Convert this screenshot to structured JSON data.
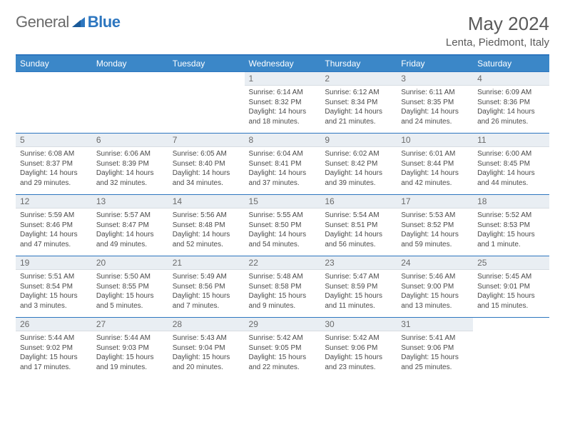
{
  "brand": {
    "word1": "General",
    "word2": "Blue"
  },
  "title": "May 2024",
  "location": "Lenta, Piedmont, Italy",
  "day_labels": [
    "Sunday",
    "Monday",
    "Tuesday",
    "Wednesday",
    "Thursday",
    "Friday",
    "Saturday"
  ],
  "colors": {
    "header_bg": "#3b87c8",
    "border": "#2d76bf",
    "daynum_bg": "#e9eef3",
    "text": "#4a4a4a"
  },
  "weeks": [
    [
      {
        "n": "",
        "lines": [
          "",
          "",
          "",
          ""
        ],
        "empty": true
      },
      {
        "n": "",
        "lines": [
          "",
          "",
          "",
          ""
        ],
        "empty": true
      },
      {
        "n": "",
        "lines": [
          "",
          "",
          "",
          ""
        ],
        "empty": true
      },
      {
        "n": "1",
        "lines": [
          "Sunrise: 6:14 AM",
          "Sunset: 8:32 PM",
          "Daylight: 14 hours",
          "and 18 minutes."
        ]
      },
      {
        "n": "2",
        "lines": [
          "Sunrise: 6:12 AM",
          "Sunset: 8:34 PM",
          "Daylight: 14 hours",
          "and 21 minutes."
        ]
      },
      {
        "n": "3",
        "lines": [
          "Sunrise: 6:11 AM",
          "Sunset: 8:35 PM",
          "Daylight: 14 hours",
          "and 24 minutes."
        ]
      },
      {
        "n": "4",
        "lines": [
          "Sunrise: 6:09 AM",
          "Sunset: 8:36 PM",
          "Daylight: 14 hours",
          "and 26 minutes."
        ]
      }
    ],
    [
      {
        "n": "5",
        "lines": [
          "Sunrise: 6:08 AM",
          "Sunset: 8:37 PM",
          "Daylight: 14 hours",
          "and 29 minutes."
        ]
      },
      {
        "n": "6",
        "lines": [
          "Sunrise: 6:06 AM",
          "Sunset: 8:39 PM",
          "Daylight: 14 hours",
          "and 32 minutes."
        ]
      },
      {
        "n": "7",
        "lines": [
          "Sunrise: 6:05 AM",
          "Sunset: 8:40 PM",
          "Daylight: 14 hours",
          "and 34 minutes."
        ]
      },
      {
        "n": "8",
        "lines": [
          "Sunrise: 6:04 AM",
          "Sunset: 8:41 PM",
          "Daylight: 14 hours",
          "and 37 minutes."
        ]
      },
      {
        "n": "9",
        "lines": [
          "Sunrise: 6:02 AM",
          "Sunset: 8:42 PM",
          "Daylight: 14 hours",
          "and 39 minutes."
        ]
      },
      {
        "n": "10",
        "lines": [
          "Sunrise: 6:01 AM",
          "Sunset: 8:44 PM",
          "Daylight: 14 hours",
          "and 42 minutes."
        ]
      },
      {
        "n": "11",
        "lines": [
          "Sunrise: 6:00 AM",
          "Sunset: 8:45 PM",
          "Daylight: 14 hours",
          "and 44 minutes."
        ]
      }
    ],
    [
      {
        "n": "12",
        "lines": [
          "Sunrise: 5:59 AM",
          "Sunset: 8:46 PM",
          "Daylight: 14 hours",
          "and 47 minutes."
        ]
      },
      {
        "n": "13",
        "lines": [
          "Sunrise: 5:57 AM",
          "Sunset: 8:47 PM",
          "Daylight: 14 hours",
          "and 49 minutes."
        ]
      },
      {
        "n": "14",
        "lines": [
          "Sunrise: 5:56 AM",
          "Sunset: 8:48 PM",
          "Daylight: 14 hours",
          "and 52 minutes."
        ]
      },
      {
        "n": "15",
        "lines": [
          "Sunrise: 5:55 AM",
          "Sunset: 8:50 PM",
          "Daylight: 14 hours",
          "and 54 minutes."
        ]
      },
      {
        "n": "16",
        "lines": [
          "Sunrise: 5:54 AM",
          "Sunset: 8:51 PM",
          "Daylight: 14 hours",
          "and 56 minutes."
        ]
      },
      {
        "n": "17",
        "lines": [
          "Sunrise: 5:53 AM",
          "Sunset: 8:52 PM",
          "Daylight: 14 hours",
          "and 59 minutes."
        ]
      },
      {
        "n": "18",
        "lines": [
          "Sunrise: 5:52 AM",
          "Sunset: 8:53 PM",
          "Daylight: 15 hours",
          "and 1 minute."
        ]
      }
    ],
    [
      {
        "n": "19",
        "lines": [
          "Sunrise: 5:51 AM",
          "Sunset: 8:54 PM",
          "Daylight: 15 hours",
          "and 3 minutes."
        ]
      },
      {
        "n": "20",
        "lines": [
          "Sunrise: 5:50 AM",
          "Sunset: 8:55 PM",
          "Daylight: 15 hours",
          "and 5 minutes."
        ]
      },
      {
        "n": "21",
        "lines": [
          "Sunrise: 5:49 AM",
          "Sunset: 8:56 PM",
          "Daylight: 15 hours",
          "and 7 minutes."
        ]
      },
      {
        "n": "22",
        "lines": [
          "Sunrise: 5:48 AM",
          "Sunset: 8:58 PM",
          "Daylight: 15 hours",
          "and 9 minutes."
        ]
      },
      {
        "n": "23",
        "lines": [
          "Sunrise: 5:47 AM",
          "Sunset: 8:59 PM",
          "Daylight: 15 hours",
          "and 11 minutes."
        ]
      },
      {
        "n": "24",
        "lines": [
          "Sunrise: 5:46 AM",
          "Sunset: 9:00 PM",
          "Daylight: 15 hours",
          "and 13 minutes."
        ]
      },
      {
        "n": "25",
        "lines": [
          "Sunrise: 5:45 AM",
          "Sunset: 9:01 PM",
          "Daylight: 15 hours",
          "and 15 minutes."
        ]
      }
    ],
    [
      {
        "n": "26",
        "lines": [
          "Sunrise: 5:44 AM",
          "Sunset: 9:02 PM",
          "Daylight: 15 hours",
          "and 17 minutes."
        ]
      },
      {
        "n": "27",
        "lines": [
          "Sunrise: 5:44 AM",
          "Sunset: 9:03 PM",
          "Daylight: 15 hours",
          "and 19 minutes."
        ]
      },
      {
        "n": "28",
        "lines": [
          "Sunrise: 5:43 AM",
          "Sunset: 9:04 PM",
          "Daylight: 15 hours",
          "and 20 minutes."
        ]
      },
      {
        "n": "29",
        "lines": [
          "Sunrise: 5:42 AM",
          "Sunset: 9:05 PM",
          "Daylight: 15 hours",
          "and 22 minutes."
        ]
      },
      {
        "n": "30",
        "lines": [
          "Sunrise: 5:42 AM",
          "Sunset: 9:06 PM",
          "Daylight: 15 hours",
          "and 23 minutes."
        ]
      },
      {
        "n": "31",
        "lines": [
          "Sunrise: 5:41 AM",
          "Sunset: 9:06 PM",
          "Daylight: 15 hours",
          "and 25 minutes."
        ]
      },
      {
        "n": "",
        "lines": [
          "",
          "",
          "",
          ""
        ],
        "empty": true
      }
    ]
  ]
}
